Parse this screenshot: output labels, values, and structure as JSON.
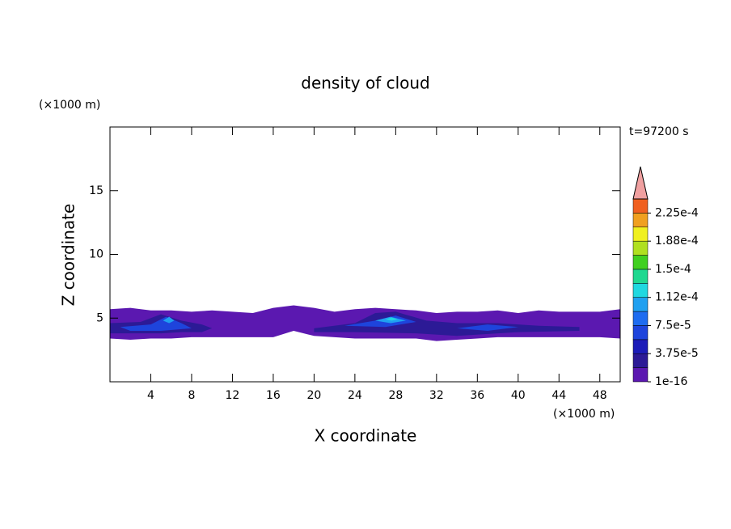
{
  "chart_data": {
    "type": "contour",
    "title": "density of cloud",
    "xlabel": "X coordinate",
    "ylabel": "Z coordinate",
    "x_unit": "(×1000 m)",
    "y_unit": "(×1000 m)",
    "time_label": "t=97200 s",
    "xlim": [
      0,
      50
    ],
    "ylim": [
      0,
      20
    ],
    "xticks": [
      4,
      8,
      12,
      16,
      20,
      24,
      28,
      32,
      36,
      40,
      44,
      48
    ],
    "yticks": [
      5,
      10,
      15
    ],
    "colorbar": {
      "lim": [
        1e-16,
        0.00024375
      ],
      "ticks": [
        {
          "value": 1e-16,
          "label": "1e-16"
        },
        {
          "value": 3.75e-05,
          "label": "3.75e-5"
        },
        {
          "value": 7.5e-05,
          "label": "7.5e-5"
        },
        {
          "value": 0.0001125,
          "label": "1.12e-4"
        },
        {
          "value": 0.00015,
          "label": "1.5e-4"
        },
        {
          "value": 0.0001875,
          "label": "1.88e-4"
        },
        {
          "value": 0.000225,
          "label": "2.25e-4"
        }
      ],
      "colors": [
        "#5b18b0",
        "#2c1a96",
        "#1c1cb8",
        "#1e44dc",
        "#1e6cf0",
        "#20a0f0",
        "#20d8e0",
        "#20d890",
        "#40d020",
        "#b0e020",
        "#f0f020",
        "#f0a020",
        "#f06020"
      ],
      "extend_color": "#f0a0a0"
    },
    "regions": [
      {
        "level": 1e-16,
        "color": "#5b18b0",
        "points": [
          [
            0,
            5.7
          ],
          [
            2,
            5.8
          ],
          [
            4,
            5.6
          ],
          [
            6,
            5.6
          ],
          [
            8,
            5.5
          ],
          [
            10,
            5.6
          ],
          [
            12,
            5.5
          ],
          [
            14,
            5.4
          ],
          [
            16,
            5.8
          ],
          [
            18,
            6.0
          ],
          [
            20,
            5.8
          ],
          [
            22,
            5.5
          ],
          [
            24,
            5.7
          ],
          [
            26,
            5.8
          ],
          [
            28,
            5.7
          ],
          [
            30,
            5.6
          ],
          [
            32,
            5.4
          ],
          [
            34,
            5.5
          ],
          [
            36,
            5.5
          ],
          [
            38,
            5.6
          ],
          [
            40,
            5.4
          ],
          [
            42,
            5.6
          ],
          [
            44,
            5.5
          ],
          [
            46,
            5.5
          ],
          [
            48,
            5.5
          ],
          [
            50,
            5.7
          ],
          [
            50,
            3.4
          ],
          [
            48,
            3.5
          ],
          [
            46,
            3.5
          ],
          [
            44,
            3.5
          ],
          [
            42,
            3.5
          ],
          [
            40,
            3.5
          ],
          [
            38,
            3.5
          ],
          [
            36,
            3.4
          ],
          [
            34,
            3.3
          ],
          [
            32,
            3.2
          ],
          [
            30,
            3.4
          ],
          [
            28,
            3.4
          ],
          [
            26,
            3.4
          ],
          [
            24,
            3.4
          ],
          [
            22,
            3.5
          ],
          [
            20,
            3.6
          ],
          [
            18,
            4.0
          ],
          [
            16,
            3.5
          ],
          [
            14,
            3.5
          ],
          [
            12,
            3.5
          ],
          [
            10,
            3.5
          ],
          [
            8,
            3.5
          ],
          [
            6,
            3.4
          ],
          [
            4,
            3.4
          ],
          [
            2,
            3.3
          ],
          [
            0,
            3.4
          ]
        ]
      },
      {
        "level": 1.875e-05,
        "color": "#2c1a96",
        "points": [
          [
            0,
            4.6
          ],
          [
            3,
            4.7
          ],
          [
            5,
            5.3
          ],
          [
            7,
            4.8
          ],
          [
            9,
            4.5
          ],
          [
            10,
            4.2
          ],
          [
            9,
            3.9
          ],
          [
            7,
            3.9
          ],
          [
            5,
            3.8
          ],
          [
            3,
            3.8
          ],
          [
            0,
            3.8
          ]
        ]
      },
      {
        "level": 1.875e-05,
        "color": "#2c1a96",
        "points": [
          [
            20,
            4.2
          ],
          [
            24,
            4.6
          ],
          [
            26,
            5.4
          ],
          [
            28,
            5.5
          ],
          [
            31,
            4.8
          ],
          [
            34,
            4.6
          ],
          [
            38,
            4.6
          ],
          [
            42,
            4.4
          ],
          [
            46,
            4.3
          ],
          [
            46,
            4.0
          ],
          [
            40,
            3.9
          ],
          [
            34,
            3.6
          ],
          [
            30,
            3.8
          ],
          [
            24,
            3.9
          ],
          [
            20,
            3.9
          ]
        ]
      },
      {
        "level": 3.75e-05,
        "color": "#1e44dc",
        "points": [
          [
            1,
            4.3
          ],
          [
            4,
            4.5
          ],
          [
            5.5,
            5.1
          ],
          [
            7,
            4.6
          ],
          [
            8,
            4.2
          ],
          [
            5,
            4.0
          ],
          [
            2,
            4.0
          ]
        ]
      },
      {
        "level": 3.75e-05,
        "color": "#1e44dc",
        "points": [
          [
            23,
            4.4
          ],
          [
            26,
            4.8
          ],
          [
            28,
            5.2
          ],
          [
            30,
            4.7
          ],
          [
            27,
            4.3
          ]
        ]
      },
      {
        "level": 3.75e-05,
        "color": "#1e44dc",
        "points": [
          [
            34,
            4.2
          ],
          [
            37,
            4.5
          ],
          [
            40,
            4.3
          ],
          [
            37,
            4.0
          ]
        ]
      },
      {
        "level": 7.5e-05,
        "color": "#20a0f0",
        "points": [
          [
            5.2,
            4.8
          ],
          [
            5.8,
            5.1
          ],
          [
            6.3,
            4.8
          ],
          [
            5.8,
            4.6
          ]
        ]
      },
      {
        "level": 7.5e-05,
        "color": "#20a0f0",
        "points": [
          [
            26,
            4.8
          ],
          [
            27.5,
            5.1
          ],
          [
            29,
            4.8
          ],
          [
            27.5,
            4.6
          ]
        ]
      },
      {
        "level": 0.0001125,
        "color": "#20d8e0",
        "points": [
          [
            27,
            4.9
          ],
          [
            27.6,
            5.05
          ],
          [
            28.2,
            4.9
          ],
          [
            27.6,
            4.8
          ]
        ]
      }
    ]
  }
}
